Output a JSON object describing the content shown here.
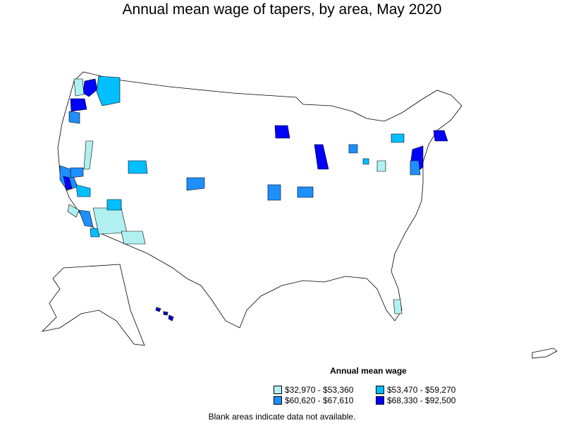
{
  "title": "Annual mean wage of tapers, by area, May 2020",
  "legend": {
    "title": "Annual mean wage",
    "items": [
      {
        "label": "$32,970 - $53,360",
        "color": "#b0f0f0"
      },
      {
        "label": "$53,470 - $59,270",
        "color": "#00bfff"
      },
      {
        "label": "$60,620 - $67,610",
        "color": "#1e8fff"
      },
      {
        "label": "$68,330 - $92,500",
        "color": "#0000ff"
      }
    ]
  },
  "note": "Blank areas indicate data not available."
}
